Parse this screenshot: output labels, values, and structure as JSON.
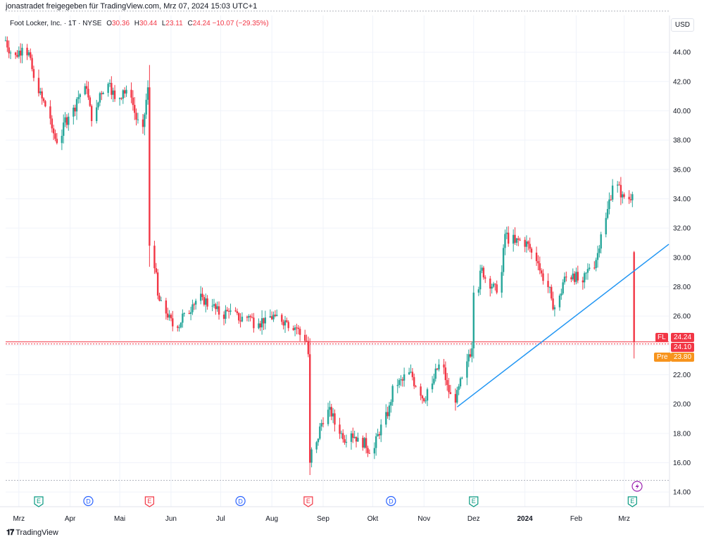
{
  "caption": "jonastradet freigegeben für TradingView.com, Mrz 07, 2024 15:03 UTC+1",
  "legend": {
    "symbol": "Foot Locker, Inc. · 1T · NYSE",
    "o_label": "O",
    "o_value": "30.36",
    "h_label": "H",
    "h_value": "30.44",
    "l_label": "L",
    "l_value": "23.11",
    "c_label": "C",
    "c_value": "24.24",
    "change": "−10.07 (−29.35%)"
  },
  "currency_button": "USD",
  "footer_logo": "TradingView",
  "colors": {
    "up": "#26a69a",
    "down": "#f23645",
    "trend": "#2196f3",
    "pre": "#f7941d",
    "dashed": "#f23645"
  },
  "price_tags": {
    "fl_label": "FL",
    "fl_value": "24.24",
    "last_value": "24.10",
    "pre_label": "Pre",
    "pre_value": "23.80"
  },
  "events": [
    {
      "type": "E",
      "date": "2023-03-13"
    },
    {
      "type": "D",
      "date": "2023-04-12"
    },
    {
      "type": "E",
      "date": "2023-05-19"
    },
    {
      "type": "D",
      "date": "2023-07-13"
    },
    {
      "type": "E",
      "date": "2023-08-23"
    },
    {
      "type": "D",
      "date": "2023-10-12"
    },
    {
      "type": "E",
      "date": "2023-12-01"
    },
    {
      "type": "E",
      "date": "2024-03-06"
    }
  ],
  "chart_data": {
    "type": "candlestick",
    "title": "Foot Locker, Inc. · 1T · NYSE",
    "ylim": [
      13,
      46.5
    ],
    "yticks": [
      "14.00",
      "16.00",
      "18.00",
      "20.00",
      "22.00",
      "24.00",
      "26.00",
      "28.00",
      "30.00",
      "32.00",
      "34.00",
      "36.00",
      "38.00",
      "40.00",
      "42.00",
      "44.00"
    ],
    "x_range": [
      "2023-02-21",
      "2024-03-28"
    ],
    "xticks": [
      {
        "label": "Mrz",
        "date": "2023-03-01"
      },
      {
        "label": "Apr",
        "date": "2023-04-01"
      },
      {
        "label": "Mai",
        "date": "2023-05-01"
      },
      {
        "label": "Jun",
        "date": "2023-06-01"
      },
      {
        "label": "Jul",
        "date": "2023-07-01"
      },
      {
        "label": "Aug",
        "date": "2023-08-01"
      },
      {
        "label": "Sep",
        "date": "2023-09-01"
      },
      {
        "label": "Okt",
        "date": "2023-10-01"
      },
      {
        "label": "Nov",
        "date": "2023-11-01"
      },
      {
        "label": "Dez",
        "date": "2023-12-01"
      },
      {
        "label": "2024",
        "date": "2024-01-01"
      },
      {
        "label": "Feb",
        "date": "2024-02-01"
      },
      {
        "label": "Mrz",
        "date": "2024-03-01"
      }
    ],
    "trendline": [
      {
        "date": "2023-11-21",
        "value": 19.8
      },
      {
        "date": "2024-03-28",
        "value": 30.9
      }
    ],
    "hlines": [
      {
        "value": 24.24,
        "style": "solid"
      },
      {
        "value": 24.1,
        "style": "dashed"
      },
      {
        "value": 14.8,
        "style": "dashed"
      },
      {
        "value": 46.8,
        "style": "dashed"
      }
    ],
    "anchors": [
      {
        "date": "2023-02-21",
        "close": 44.8
      },
      {
        "date": "2023-02-27",
        "close": 43.8
      },
      {
        "date": "2023-03-03",
        "close": 44.3
      },
      {
        "date": "2023-03-08",
        "close": 43.6
      },
      {
        "date": "2023-03-13",
        "close": 41.2
      },
      {
        "date": "2023-03-17",
        "close": 40.3
      },
      {
        "date": "2023-03-21",
        "close": 38.8
      },
      {
        "date": "2023-03-24",
        "close": 37.8
      },
      {
        "date": "2023-03-28",
        "close": 39.2
      },
      {
        "date": "2023-03-31",
        "close": 39.6
      },
      {
        "date": "2023-04-05",
        "close": 40.8
      },
      {
        "date": "2023-04-11",
        "close": 41.5
      },
      {
        "date": "2023-04-14",
        "close": 39.3
      },
      {
        "date": "2023-04-19",
        "close": 41.2
      },
      {
        "date": "2023-04-25",
        "close": 41.9
      },
      {
        "date": "2023-04-28",
        "close": 40.8
      },
      {
        "date": "2023-05-03",
        "close": 41.4
      },
      {
        "date": "2023-05-08",
        "close": 40.9
      },
      {
        "date": "2023-05-11",
        "close": 39.4
      },
      {
        "date": "2023-05-15",
        "close": 38.9
      },
      {
        "date": "2023-05-18",
        "close": 41.6
      },
      {
        "date": "2023-05-19",
        "close": 30.8
      },
      {
        "date": "2023-05-24",
        "close": 27.4
      },
      {
        "date": "2023-05-30",
        "close": 25.9
      },
      {
        "date": "2023-06-05",
        "close": 25.2
      },
      {
        "date": "2023-06-09",
        "close": 26.2
      },
      {
        "date": "2023-06-14",
        "close": 26.8
      },
      {
        "date": "2023-06-20",
        "close": 27.3
      },
      {
        "date": "2023-06-26",
        "close": 26.7
      },
      {
        "date": "2023-06-30",
        "close": 26.1
      },
      {
        "date": "2023-07-06",
        "close": 26.3
      },
      {
        "date": "2023-07-12",
        "close": 25.7
      },
      {
        "date": "2023-07-18",
        "close": 26.0
      },
      {
        "date": "2023-07-24",
        "close": 25.5
      },
      {
        "date": "2023-07-28",
        "close": 25.9
      },
      {
        "date": "2023-08-03",
        "close": 26.0
      },
      {
        "date": "2023-08-10",
        "close": 25.6
      },
      {
        "date": "2023-08-16",
        "close": 25.2
      },
      {
        "date": "2023-08-22",
        "close": 24.3
      },
      {
        "date": "2023-08-23",
        "close": 23.4
      },
      {
        "date": "2023-08-24",
        "close": 16.0
      },
      {
        "date": "2023-08-28",
        "close": 17.4
      },
      {
        "date": "2023-08-31",
        "close": 18.7
      },
      {
        "date": "2023-09-05",
        "close": 19.8
      },
      {
        "date": "2023-09-08",
        "close": 18.6
      },
      {
        "date": "2023-09-13",
        "close": 17.6
      },
      {
        "date": "2023-09-18",
        "close": 18.0
      },
      {
        "date": "2023-09-22",
        "close": 17.7
      },
      {
        "date": "2023-09-27",
        "close": 17.0
      },
      {
        "date": "2023-10-02",
        "close": 17.0
      },
      {
        "date": "2023-10-06",
        "close": 18.6
      },
      {
        "date": "2023-10-11",
        "close": 19.9
      },
      {
        "date": "2023-10-16",
        "close": 21.3
      },
      {
        "date": "2023-10-19",
        "close": 21.6
      },
      {
        "date": "2023-10-24",
        "close": 22.2
      },
      {
        "date": "2023-10-27",
        "close": 21.2
      },
      {
        "date": "2023-11-01",
        "close": 20.2
      },
      {
        "date": "2023-11-06",
        "close": 21.4
      },
      {
        "date": "2023-11-10",
        "close": 22.7
      },
      {
        "date": "2023-11-15",
        "close": 21.3
      },
      {
        "date": "2023-11-20",
        "close": 20.1
      },
      {
        "date": "2023-11-24",
        "close": 21.8
      },
      {
        "date": "2023-11-28",
        "close": 23.4
      },
      {
        "date": "2023-11-30",
        "close": 23.8
      },
      {
        "date": "2023-12-01",
        "close": 27.6
      },
      {
        "date": "2023-12-06",
        "close": 29.3
      },
      {
        "date": "2023-12-12",
        "close": 28.0
      },
      {
        "date": "2023-12-15",
        "close": 27.6
      },
      {
        "date": "2023-12-20",
        "close": 31.6
      },
      {
        "date": "2023-12-26",
        "close": 31.0
      },
      {
        "date": "2023-12-29",
        "close": 31.2
      },
      {
        "date": "2024-01-04",
        "close": 30.6
      },
      {
        "date": "2024-01-09",
        "close": 29.6
      },
      {
        "date": "2024-01-12",
        "close": 28.4
      },
      {
        "date": "2024-01-17",
        "close": 27.2
      },
      {
        "date": "2024-01-19",
        "close": 26.6
      },
      {
        "date": "2024-01-24",
        "close": 28.3
      },
      {
        "date": "2024-01-30",
        "close": 28.9
      },
      {
        "date": "2024-02-05",
        "close": 28.3
      },
      {
        "date": "2024-02-09",
        "close": 29.3
      },
      {
        "date": "2024-02-14",
        "close": 30.3
      },
      {
        "date": "2024-02-20",
        "close": 33.3
      },
      {
        "date": "2024-02-23",
        "close": 34.9
      },
      {
        "date": "2024-02-29",
        "close": 34.3
      },
      {
        "date": "2024-03-05",
        "close": 33.9
      },
      {
        "date": "2024-03-06",
        "close": 34.31
      },
      {
        "date": "2024-03-07",
        "open": 30.36,
        "high": 30.44,
        "low": 23.11,
        "close": 24.24
      }
    ]
  }
}
